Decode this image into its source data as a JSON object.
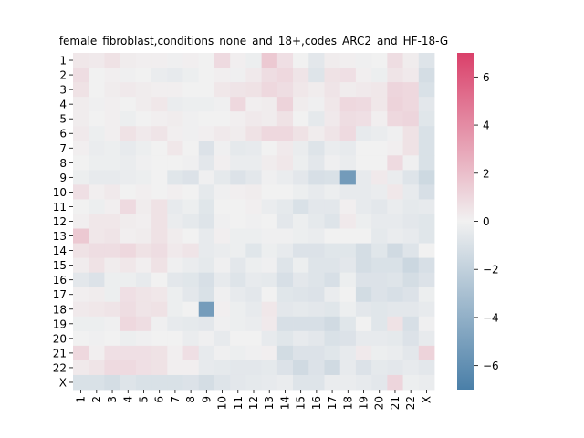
{
  "chart_data": {
    "type": "heatmap",
    "title": "female_fibroblast,conditions_none_and_18+,codes_ARC2_and_HF-18-G",
    "xlabel": "",
    "ylabel": "",
    "x_labels": [
      "1",
      "2",
      "3",
      "4",
      "5",
      "6",
      "7",
      "8",
      "9",
      "10",
      "11",
      "12",
      "13",
      "14",
      "15",
      "16",
      "17",
      "18",
      "19",
      "20",
      "21",
      "22",
      "X"
    ],
    "y_labels": [
      "1",
      "2",
      "3",
      "4",
      "5",
      "6",
      "7",
      "8",
      "9",
      "10",
      "11",
      "12",
      "13",
      "14",
      "15",
      "16",
      "17",
      "18",
      "19",
      "20",
      "21",
      "22",
      "X"
    ],
    "colorbar": {
      "vmin": -7,
      "vmax": 7,
      "ticks": [
        -6,
        -4,
        -2,
        0,
        2,
        4,
        6
      ],
      "tick_labels": [
        "−6",
        "−4",
        "−2",
        "0",
        "2",
        "4",
        "6"
      ],
      "low_color": "#4A7FA8",
      "mid_color": "#F1F1F1",
      "high_color": "#DA406A"
    },
    "values": [
      [
        0.4,
        0.3,
        0.6,
        0.2,
        0.1,
        0.1,
        -0.1,
        0.1,
        0.0,
        0.9,
        0.1,
        -0.2,
        1.6,
        0.7,
        0.0,
        -0.6,
        0.2,
        0.1,
        -0.1,
        0.0,
        0.8,
        0.2,
        -0.8
      ],
      [
        0.8,
        0.0,
        0.1,
        -0.1,
        0.0,
        -0.3,
        -0.4,
        -0.2,
        0.0,
        0.1,
        -0.1,
        0.3,
        0.8,
        1.0,
        0.5,
        -0.8,
        0.6,
        0.7,
        0.1,
        -0.2,
        0.5,
        0.3,
        -1.2
      ],
      [
        0.6,
        0.0,
        0.2,
        0.3,
        0.2,
        0.1,
        0.1,
        0.0,
        0.0,
        0.4,
        0.5,
        0.6,
        1.0,
        0.8,
        0.4,
        0.2,
        0.5,
        0.2,
        0.3,
        0.4,
        1.1,
        1.0,
        -1.0
      ],
      [
        0.2,
        -0.1,
        0.1,
        0.0,
        0.2,
        0.4,
        -0.3,
        -0.2,
        -0.2,
        -0.1,
        1.0,
        0.1,
        0.2,
        1.2,
        0.2,
        -0.1,
        0.4,
        1.0,
        0.9,
        0.4,
        1.2,
        1.0,
        -0.6
      ],
      [
        0.2,
        0.0,
        0.1,
        -0.2,
        0.0,
        0.1,
        0.2,
        -0.1,
        0.0,
        0.0,
        0.1,
        0.3,
        0.2,
        0.6,
        0.0,
        -0.5,
        0.3,
        0.8,
        0.7,
        0.1,
        1.0,
        1.1,
        -0.7
      ],
      [
        0.3,
        -0.2,
        0.1,
        0.6,
        0.3,
        0.5,
        0.1,
        -0.1,
        0.1,
        0.3,
        0.2,
        0.6,
        1.0,
        1.0,
        0.6,
        0.2,
        0.5,
        0.9,
        -0.4,
        -0.3,
        -0.1,
        0.6,
        -1.0
      ],
      [
        0.1,
        -0.3,
        -0.2,
        -0.4,
        -0.2,
        0.0,
        0.4,
        0.0,
        -0.9,
        -0.1,
        -0.5,
        -0.4,
        0.0,
        0.3,
        -0.3,
        -0.8,
        -0.3,
        -0.4,
        0.0,
        0.0,
        0.1,
        0.6,
        -1.0
      ],
      [
        0.0,
        -0.2,
        -0.2,
        -0.3,
        -0.1,
        0.0,
        0.0,
        -0.1,
        -0.6,
        0.1,
        -0.3,
        -0.3,
        0.2,
        0.4,
        -0.2,
        -0.6,
        -0.1,
        -0.3,
        0.0,
        0.0,
        0.9,
        -0.1,
        -1.0
      ],
      [
        -0.2,
        -0.4,
        -0.4,
        -0.3,
        -0.2,
        0.0,
        -0.7,
        -0.9,
        -0.1,
        -0.5,
        -0.9,
        -0.6,
        -0.1,
        -0.3,
        -0.6,
        -1.1,
        -1.0,
        -5.3,
        -0.4,
        0.3,
        -0.3,
        -0.8,
        -1.5
      ],
      [
        0.7,
        0.1,
        0.3,
        0.0,
        0.1,
        0.0,
        0.1,
        0.0,
        -0.5,
        -0.1,
        0.1,
        0.2,
        0.0,
        0.0,
        -0.2,
        -0.4,
        -0.2,
        -0.4,
        -0.4,
        -0.3,
        0.4,
        -0.4,
        -1.1
      ],
      [
        0.0,
        -0.2,
        0.1,
        0.9,
        0.2,
        0.6,
        -0.4,
        -0.2,
        -0.7,
        0.0,
        0.0,
        0.1,
        -0.3,
        -0.5,
        -1.0,
        -0.6,
        -0.6,
        0.1,
        -0.4,
        -0.6,
        -0.3,
        -0.5,
        -0.4
      ],
      [
        0.1,
        0.4,
        0.4,
        0.2,
        0.1,
        0.6,
        -0.3,
        -0.5,
        -0.8,
        -0.1,
        0.0,
        -0.1,
        0.0,
        -0.6,
        -0.2,
        -0.5,
        -0.8,
        0.3,
        -0.2,
        -0.4,
        -0.4,
        -0.6,
        -0.7
      ],
      [
        1.6,
        0.4,
        0.5,
        0.1,
        0.2,
        0.6,
        0.2,
        0.0,
        -0.4,
        0.1,
        -0.2,
        -0.2,
        -0.1,
        -0.1,
        -0.2,
        -0.3,
        0.0,
        0.0,
        0.0,
        -0.5,
        -0.3,
        -0.4,
        -0.7
      ],
      [
        0.6,
        0.8,
        0.8,
        1.0,
        0.6,
        0.8,
        0.3,
        0.5,
        -0.4,
        -0.3,
        -0.2,
        -0.7,
        -0.2,
        -0.4,
        -0.9,
        -0.9,
        -0.7,
        -0.7,
        -1.2,
        -0.7,
        -1.4,
        -0.8,
        0.0
      ],
      [
        0.2,
        0.6,
        0.2,
        0.4,
        0.1,
        0.6,
        -0.1,
        -0.3,
        -0.5,
        -0.1,
        -0.6,
        -0.2,
        -0.1,
        -0.8,
        -0.2,
        -0.8,
        -0.8,
        -0.6,
        -1.2,
        -1.0,
        -1.0,
        -1.6,
        -1.1
      ],
      [
        -0.6,
        -0.9,
        -0.2,
        -0.2,
        -0.4,
        0.0,
        -0.6,
        -0.7,
        -1.1,
        -0.4,
        -0.8,
        -0.4,
        -0.5,
        -1.1,
        -0.6,
        -0.8,
        -1.1,
        -0.2,
        -0.9,
        -0.9,
        -0.8,
        -1.2,
        -0.9
      ],
      [
        0.1,
        0.2,
        -0.2,
        0.7,
        0.5,
        0.4,
        -0.2,
        -0.6,
        -1.0,
        -0.1,
        -0.4,
        -0.6,
        0.0,
        -0.7,
        -0.8,
        -0.9,
        -0.3,
        0.0,
        -1.3,
        -0.9,
        -1.1,
        -0.9,
        -0.2
      ],
      [
        0.3,
        0.4,
        0.5,
        0.8,
        0.5,
        0.6,
        -0.2,
        0.0,
        -5.2,
        0.1,
        -0.2,
        -0.4,
        0.4,
        -0.6,
        -0.5,
        -0.6,
        -0.7,
        -0.2,
        -0.6,
        -0.7,
        -0.6,
        -0.6,
        -0.4
      ],
      [
        -0.2,
        -0.2,
        -0.1,
        1.0,
        0.8,
        -0.1,
        -0.4,
        -0.5,
        -0.6,
        -0.1,
        -0.2,
        -0.3,
        0.3,
        -1.1,
        -1.1,
        -1.1,
        -1.4,
        -0.7,
        0.0,
        -0.7,
        0.6,
        -1.1,
        -0.1
      ],
      [
        0.0,
        -0.1,
        0.0,
        -0.2,
        -0.1,
        0.0,
        0.0,
        -0.3,
        -0.1,
        -0.4,
        0.0,
        0.0,
        -0.4,
        -0.7,
        -0.4,
        -0.6,
        -1.0,
        -0.9,
        -0.4,
        -0.4,
        -0.5,
        -0.9,
        -0.4
      ],
      [
        1.0,
        0.1,
        0.7,
        0.7,
        0.7,
        0.6,
        0.1,
        0.7,
        -0.4,
        -0.1,
        -0.2,
        -0.1,
        0.1,
        -1.3,
        -0.9,
        -0.9,
        -0.7,
        -0.4,
        0.3,
        -0.2,
        -0.3,
        -0.6,
        1.2
      ],
      [
        0.3,
        0.5,
        0.9,
        0.9,
        0.7,
        0.6,
        0.1,
        0.1,
        -0.4,
        -0.5,
        -0.6,
        -0.6,
        -0.5,
        -0.9,
        -1.4,
        -0.9,
        -1.4,
        -0.4,
        -0.9,
        -0.5,
        -0.6,
        -0.4,
        -0.6
      ],
      [
        -1.0,
        -1.0,
        -1.2,
        -0.8,
        -1.0,
        -1.0,
        -1.0,
        -0.9,
        -1.2,
        -0.8,
        -0.6,
        -0.5,
        -0.4,
        -0.3,
        -0.8,
        -0.8,
        -0.3,
        -0.3,
        -0.4,
        -0.6,
        1.1,
        -0.2,
        -0.3
      ]
    ]
  }
}
